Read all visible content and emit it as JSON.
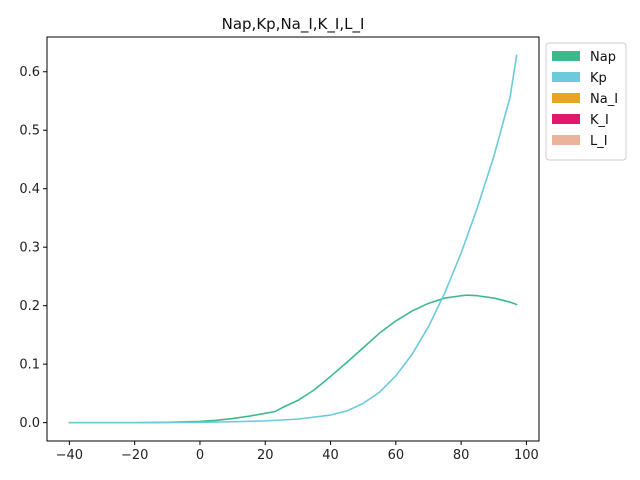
{
  "chart_data": {
    "type": "line",
    "title": "Nap,Kp,Na_I,K_I,L_I",
    "xlabel": "",
    "ylabel": "",
    "xlim": [
      -46.85,
      103.85
    ],
    "ylim": [
      -0.0314,
      0.6594
    ],
    "xticks": [
      -40,
      -20,
      0,
      20,
      40,
      60,
      80,
      100
    ],
    "yticks": [
      0.0,
      0.1,
      0.2,
      0.3,
      0.4,
      0.5,
      0.6
    ],
    "xtick_labels": [
      "−40",
      "−20",
      "0",
      "20",
      "40",
      "60",
      "80",
      "100"
    ],
    "ytick_labels": [
      "0.0",
      "0.1",
      "0.2",
      "0.3",
      "0.4",
      "0.5",
      "0.6"
    ],
    "grid": false,
    "legend_position": "outside-top-right",
    "series": [
      {
        "name": "Nap",
        "color": "#3dba8c",
        "x": [
          -40,
          -30,
          -20,
          -10,
          0,
          5,
          10,
          15,
          20,
          23,
          25,
          30,
          35,
          40,
          45,
          50,
          55,
          60,
          65,
          70,
          75,
          80,
          82,
          85,
          90,
          95,
          97
        ],
        "y": [
          0.0,
          0.0,
          0.0,
          0.0005,
          0.002,
          0.004,
          0.007,
          0.011,
          0.016,
          0.019,
          0.025,
          0.038,
          0.056,
          0.079,
          0.103,
          0.128,
          0.153,
          0.174,
          0.191,
          0.204,
          0.213,
          0.217,
          0.218,
          0.217,
          0.213,
          0.206,
          0.202
        ]
      },
      {
        "name": "Kp",
        "color": "#6ccadb",
        "x": [
          -40,
          -20,
          0,
          10,
          20,
          30,
          40,
          45,
          50,
          55,
          60,
          65,
          70,
          75,
          80,
          85,
          90,
          95,
          97
        ],
        "y": [
          0.0,
          0.0,
          0.0005,
          0.0015,
          0.003,
          0.006,
          0.013,
          0.02,
          0.033,
          0.052,
          0.08,
          0.117,
          0.164,
          0.222,
          0.29,
          0.368,
          0.455,
          0.557,
          0.628
        ]
      },
      {
        "name": "Na_I",
        "color": "#e8a521",
        "x": [],
        "y": []
      },
      {
        "name": "K_I",
        "color": "#e0186a",
        "x": [],
        "y": []
      },
      {
        "name": "L_I",
        "color": "#eab49a",
        "x": [],
        "y": []
      }
    ]
  }
}
